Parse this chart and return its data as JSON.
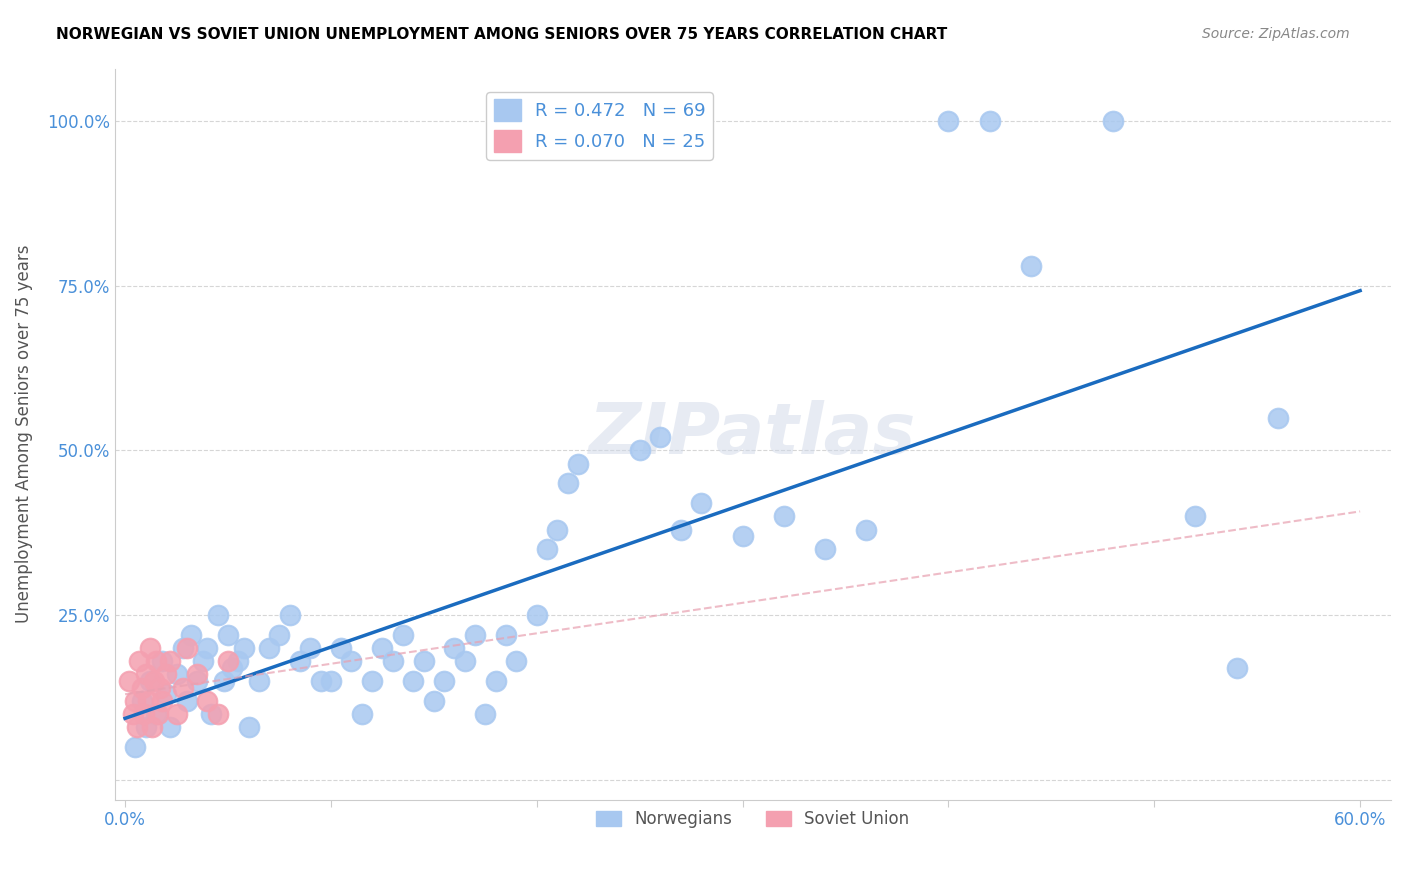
{
  "title": "NORWEGIAN VS SOVIET UNION UNEMPLOYMENT AMONG SENIORS OVER 75 YEARS CORRELATION CHART",
  "source": "Source: ZipAtlas.com",
  "ylabel": "Unemployment Among Seniors over 75 years",
  "xlabel_norwegian": "Norwegians",
  "xlabel_soviet": "Soviet Union",
  "x_ticks": [
    0.0,
    0.1,
    0.2,
    0.3,
    0.4,
    0.5,
    0.6
  ],
  "x_tick_labels": [
    "0.0%",
    "",
    "",
    "",
    "",
    "",
    "60.0%"
  ],
  "y_ticks": [
    0.0,
    0.25,
    0.5,
    0.75,
    1.0
  ],
  "y_tick_labels": [
    "",
    "25.0%",
    "50.0%",
    "75.0%",
    "100.0%"
  ],
  "norwegian_R": 0.472,
  "norwegian_N": 69,
  "soviet_R": 0.07,
  "soviet_N": 25,
  "norwegian_color": "#a8c8f0",
  "soviet_color": "#f4a0b0",
  "norwegian_line_color": "#1a6bbf",
  "soviet_line_color": "#e8a0b0",
  "watermark": "ZIPatlas",
  "norwegian_x": [
    0.005,
    0.008,
    0.01,
    0.012,
    0.015,
    0.018,
    0.02,
    0.022,
    0.025,
    0.028,
    0.03,
    0.032,
    0.035,
    0.038,
    0.04,
    0.042,
    0.045,
    0.048,
    0.05,
    0.052,
    0.055,
    0.058,
    0.06,
    0.065,
    0.07,
    0.075,
    0.08,
    0.085,
    0.09,
    0.095,
    0.1,
    0.105,
    0.11,
    0.115,
    0.12,
    0.125,
    0.13,
    0.135,
    0.14,
    0.145,
    0.15,
    0.155,
    0.16,
    0.165,
    0.17,
    0.175,
    0.18,
    0.185,
    0.19,
    0.2,
    0.205,
    0.21,
    0.215,
    0.22,
    0.25,
    0.26,
    0.27,
    0.28,
    0.3,
    0.32,
    0.34,
    0.36,
    0.4,
    0.42,
    0.44,
    0.48,
    0.52,
    0.54,
    0.56
  ],
  "norwegian_y": [
    0.05,
    0.12,
    0.08,
    0.15,
    0.1,
    0.18,
    0.13,
    0.08,
    0.16,
    0.2,
    0.12,
    0.22,
    0.15,
    0.18,
    0.2,
    0.1,
    0.25,
    0.15,
    0.22,
    0.17,
    0.18,
    0.2,
    0.08,
    0.15,
    0.2,
    0.22,
    0.25,
    0.18,
    0.2,
    0.15,
    0.15,
    0.2,
    0.18,
    0.1,
    0.15,
    0.2,
    0.18,
    0.22,
    0.15,
    0.18,
    0.12,
    0.15,
    0.2,
    0.18,
    0.22,
    0.1,
    0.15,
    0.22,
    0.18,
    0.25,
    0.35,
    0.38,
    0.45,
    0.48,
    0.5,
    0.52,
    0.38,
    0.42,
    0.37,
    0.4,
    0.35,
    0.38,
    1.0,
    1.0,
    0.78,
    1.0,
    0.4,
    0.17,
    0.55
  ],
  "soviet_x": [
    0.002,
    0.004,
    0.005,
    0.006,
    0.007,
    0.008,
    0.009,
    0.01,
    0.011,
    0.012,
    0.013,
    0.014,
    0.015,
    0.016,
    0.017,
    0.018,
    0.02,
    0.022,
    0.025,
    0.028,
    0.03,
    0.035,
    0.04,
    0.045,
    0.05
  ],
  "soviet_y": [
    0.15,
    0.1,
    0.12,
    0.08,
    0.18,
    0.14,
    0.1,
    0.16,
    0.12,
    0.2,
    0.08,
    0.15,
    0.18,
    0.1,
    0.14,
    0.12,
    0.16,
    0.18,
    0.1,
    0.14,
    0.2,
    0.16,
    0.12,
    0.1,
    0.18
  ]
}
